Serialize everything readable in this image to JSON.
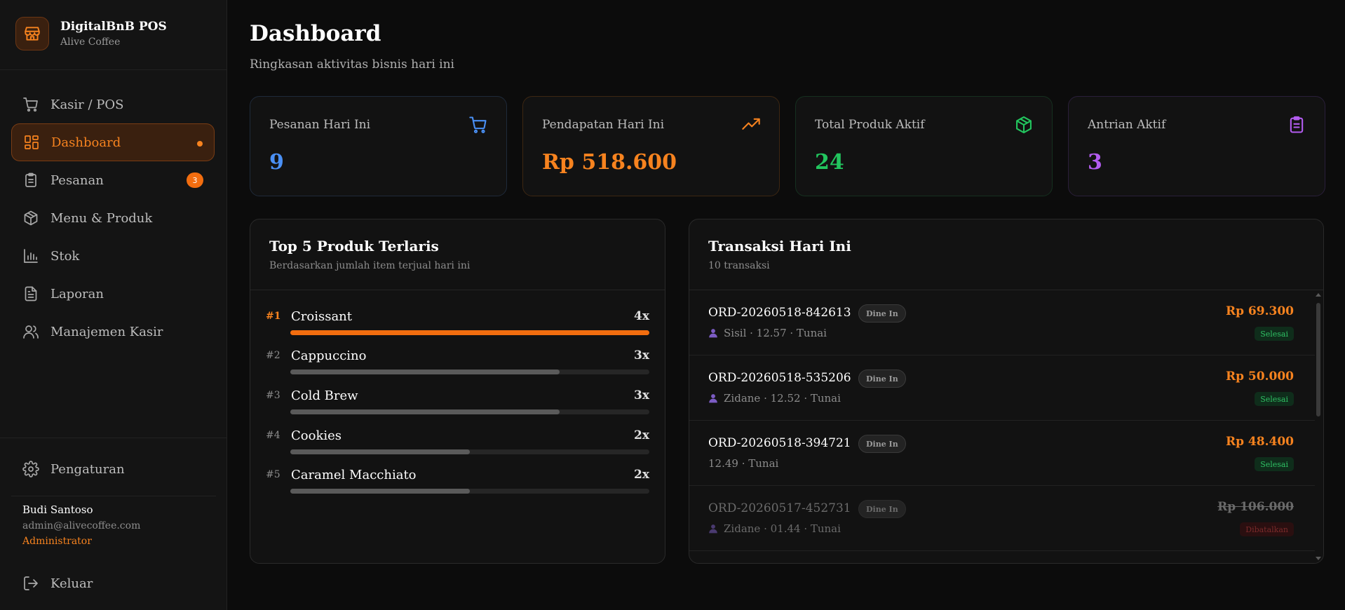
{
  "brand": {
    "name": "DigitalBnB POS",
    "subtitle": "Alive Coffee",
    "icon": "store-icon"
  },
  "nav": {
    "items": [
      {
        "label": "Kasir / POS",
        "icon": "cart-icon"
      },
      {
        "label": "Dashboard",
        "icon": "dashboard-icon",
        "active": true
      },
      {
        "label": "Pesanan",
        "icon": "clipboard-icon",
        "badge": "3"
      },
      {
        "label": "Menu & Produk",
        "icon": "box-icon"
      },
      {
        "label": "Stok",
        "icon": "bar-chart-icon"
      },
      {
        "label": "Laporan",
        "icon": "document-icon"
      },
      {
        "label": "Manajemen Kasir",
        "icon": "users-icon"
      }
    ],
    "settings_label": "Pengaturan",
    "logout_label": "Keluar"
  },
  "user": {
    "name": "Budi Santoso",
    "email": "admin@alivecoffee.com",
    "role": "Administrator"
  },
  "header": {
    "title": "Dashboard",
    "subtitle": "Ringkasan aktivitas bisnis hari ini"
  },
  "stats": [
    {
      "label": "Pesanan Hari Ini",
      "value": "9",
      "color": "#4a90f5",
      "icon": "cart-icon"
    },
    {
      "label": "Pendapatan Hari Ini",
      "value": "Rp 518.600",
      "color": "#f7831f",
      "icon": "trending-up-icon"
    },
    {
      "label": "Total Produk Aktif",
      "value": "24",
      "color": "#22c55e",
      "icon": "box-icon"
    },
    {
      "label": "Antrian Aktif",
      "value": "3",
      "color": "#b35cf0",
      "icon": "clipboard-icon"
    }
  ],
  "top_products": {
    "title": "Top 5 Produk Terlaris",
    "subtitle": "Berdasarkan jumlah item terjual hari ini",
    "items": [
      {
        "rank": "#1",
        "name": "Croissant",
        "qty": "4x",
        "share": 1.0
      },
      {
        "rank": "#2",
        "name": "Cappuccino",
        "qty": "3x",
        "share": 0.75
      },
      {
        "rank": "#3",
        "name": "Cold Brew",
        "qty": "3x",
        "share": 0.75
      },
      {
        "rank": "#4",
        "name": "Cookies",
        "qty": "2x",
        "share": 0.5
      },
      {
        "rank": "#5",
        "name": "Caramel Macchiato",
        "qty": "2x",
        "share": 0.5
      }
    ]
  },
  "transactions": {
    "title": "Transaksi Hari Ini",
    "subtitle": "10 transaksi",
    "items": [
      {
        "id": "ORD-20260518-842613",
        "type": "Dine In",
        "meta": "Sisil · 12.57 · Tunai",
        "has_user": true,
        "amount": "Rp 69.300",
        "status": "Selesai",
        "cancelled": false
      },
      {
        "id": "ORD-20260518-535206",
        "type": "Dine In",
        "meta": "Zidane · 12.52 · Tunai",
        "has_user": true,
        "amount": "Rp 50.000",
        "status": "Selesai",
        "cancelled": false
      },
      {
        "id": "ORD-20260518-394721",
        "type": "Dine In",
        "meta": "12.49 · Tunai",
        "has_user": false,
        "amount": "Rp 48.400",
        "status": "Selesai",
        "cancelled": false
      },
      {
        "id": "ORD-20260517-452731",
        "type": "Dine In",
        "meta": "Zidane · 01.44 · Tunai",
        "has_user": true,
        "amount": "Rp 106.000",
        "status": "Dibatalkan",
        "cancelled": true
      }
    ]
  }
}
